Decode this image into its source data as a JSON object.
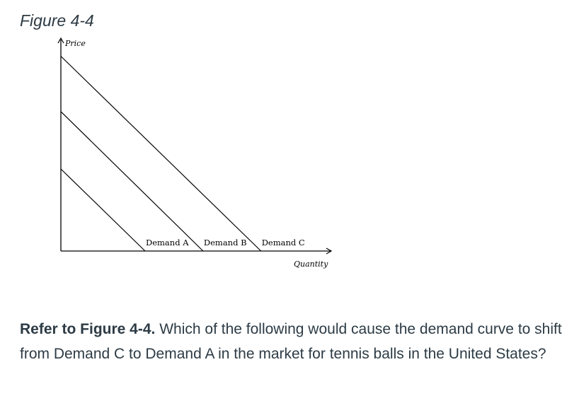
{
  "figure_title": "Figure 4-4",
  "chart_data": {
    "type": "line",
    "xlabel": "Quantity",
    "ylabel": "Price",
    "ticks": "none",
    "grid": false,
    "xlim": [
      0,
      100
    ],
    "ylim": [
      0,
      100
    ],
    "series": [
      {
        "name": "Demand A",
        "x": [
          0,
          32
        ],
        "y": [
          40,
          0
        ]
      },
      {
        "name": "Demand B",
        "x": [
          0,
          54
        ],
        "y": [
          68,
          0
        ]
      },
      {
        "name": "Demand C",
        "x": [
          0,
          76
        ],
        "y": [
          95,
          0
        ]
      }
    ]
  },
  "question": {
    "reference": "Refer to Figure 4-4.",
    "text": " Which of the following would cause the demand curve to shift from Demand C to Demand A in the market for tennis balls in the United States?"
  }
}
